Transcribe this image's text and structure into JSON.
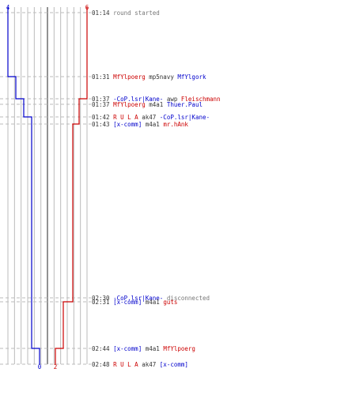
{
  "chart_data": {
    "type": "line",
    "title": "",
    "colors": {
      "blue": "#0000cc",
      "red": "#cc0000",
      "grid": "#bbbbbb",
      "center": "#777777",
      "dash": "#bbbbbb",
      "text": "#333333",
      "gray": "#777777"
    },
    "y_axis": {
      "top_label_blue": "4",
      "top_label_red": "6",
      "bottom_label_blue": "0",
      "bottom_label_red": "2"
    },
    "events": [
      {
        "time": "01:14",
        "text": [
          {
            "t": "round started",
            "c": "gray"
          }
        ]
      },
      {
        "time": "01:31",
        "text": [
          {
            "t": "MfYlpoerg",
            "c": "red"
          },
          {
            "t": " mp5navy ",
            "c": "text"
          },
          {
            "t": "MfYlgork",
            "c": "blue"
          }
        ]
      },
      {
        "time": "01:37",
        "text": [
          {
            "t": "-CoP.lsr|Kane-",
            "c": "blue"
          },
          {
            "t": " awp ",
            "c": "text"
          },
          {
            "t": "Fleischmann",
            "c": "red"
          }
        ]
      },
      {
        "time": "01:37",
        "text": [
          {
            "t": "MfYlpoerg",
            "c": "red"
          },
          {
            "t": " m4a1 ",
            "c": "text"
          },
          {
            "t": "Thuer.Paul",
            "c": "blue"
          }
        ]
      },
      {
        "time": "01:42",
        "text": [
          {
            "t": "R  U  L  A",
            "c": "red"
          },
          {
            "t": " ak47 ",
            "c": "text"
          },
          {
            "t": "-CoP.lsr|Kane-",
            "c": "blue"
          }
        ]
      },
      {
        "time": "01:43",
        "text": [
          {
            "t": "[x-comm]",
            "c": "blue"
          },
          {
            "t": " m4a1 ",
            "c": "text"
          },
          {
            "t": "mr.hAnk",
            "c": "red"
          }
        ]
      },
      {
        "time": "02:30",
        "text": [
          {
            "t": "-CoP.lsr|Kane-",
            "c": "blue"
          },
          {
            "t": " disconnected",
            "c": "gray"
          }
        ]
      },
      {
        "time": "02:31",
        "text": [
          {
            "t": "[x-comm]",
            "c": "blue"
          },
          {
            "t": " m4a1 ",
            "c": "text"
          },
          {
            "t": "guts",
            "c": "red"
          }
        ]
      },
      {
        "time": "02:44",
        "text": [
          {
            "t": "[x-comm]",
            "c": "blue"
          },
          {
            "t": " m4a1 ",
            "c": "text"
          },
          {
            "t": "MfYlpoerg",
            "c": "red"
          }
        ]
      },
      {
        "time": "02:48",
        "text": [
          {
            "t": "R  U  L  A",
            "c": "red"
          },
          {
            "t": " ak47 ",
            "c": "text"
          },
          {
            "t": "[x-comm]",
            "c": "blue"
          }
        ]
      }
    ],
    "series": [
      {
        "color": "blue",
        "values": [
          4,
          3,
          2,
          2,
          1,
          1,
          0,
          0,
          0,
          0
        ]
      },
      {
        "color": "red",
        "values": [
          6,
          6,
          5,
          5,
          4,
          3,
          3,
          2,
          1,
          0
        ]
      }
    ],
    "x_range": [
      -6,
      6
    ],
    "grid_lines_x": [
      -6,
      -5,
      -4,
      -3,
      -2,
      -1,
      0,
      1,
      2,
      3,
      4,
      5,
      6
    ]
  }
}
